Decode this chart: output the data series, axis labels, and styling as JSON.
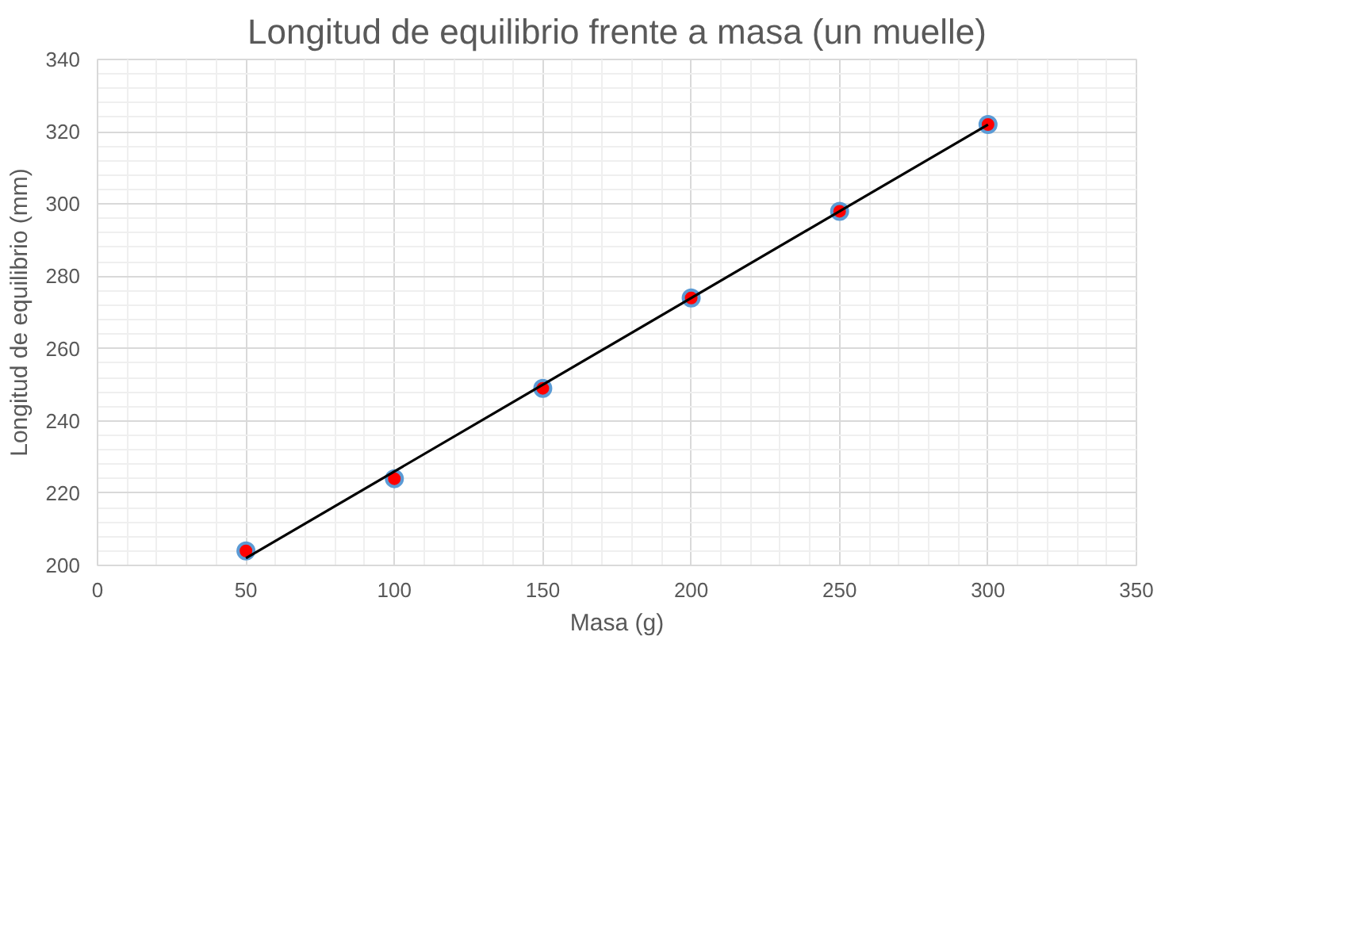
{
  "chart_data": {
    "type": "scatter",
    "title": "Longitud de equilibrio frente a masa (un muelle)",
    "xlabel": "Masa (g)",
    "ylabel": "Longitud de equilibrio (mm)",
    "xlim": [
      0,
      350
    ],
    "xticks": [
      0,
      50,
      100,
      150,
      200,
      250,
      300,
      350
    ],
    "ylim": [
      200,
      340
    ],
    "yticks": [
      200,
      220,
      240,
      260,
      280,
      300,
      320,
      340
    ],
    "grid": true,
    "marker": "circle",
    "series": [
      {
        "color": "#ff0000",
        "x": [
          50,
          100,
          150,
          200,
          250,
          300
        ],
        "values": [
          204,
          224,
          249,
          274,
          298,
          322
        ]
      },
      {
        "type": "line",
        "color": "#000000",
        "x": [
          50,
          300
        ],
        "values": [
          202,
          322
        ],
        "marker": "none",
        "line_style": "solid"
      }
    ]
  }
}
